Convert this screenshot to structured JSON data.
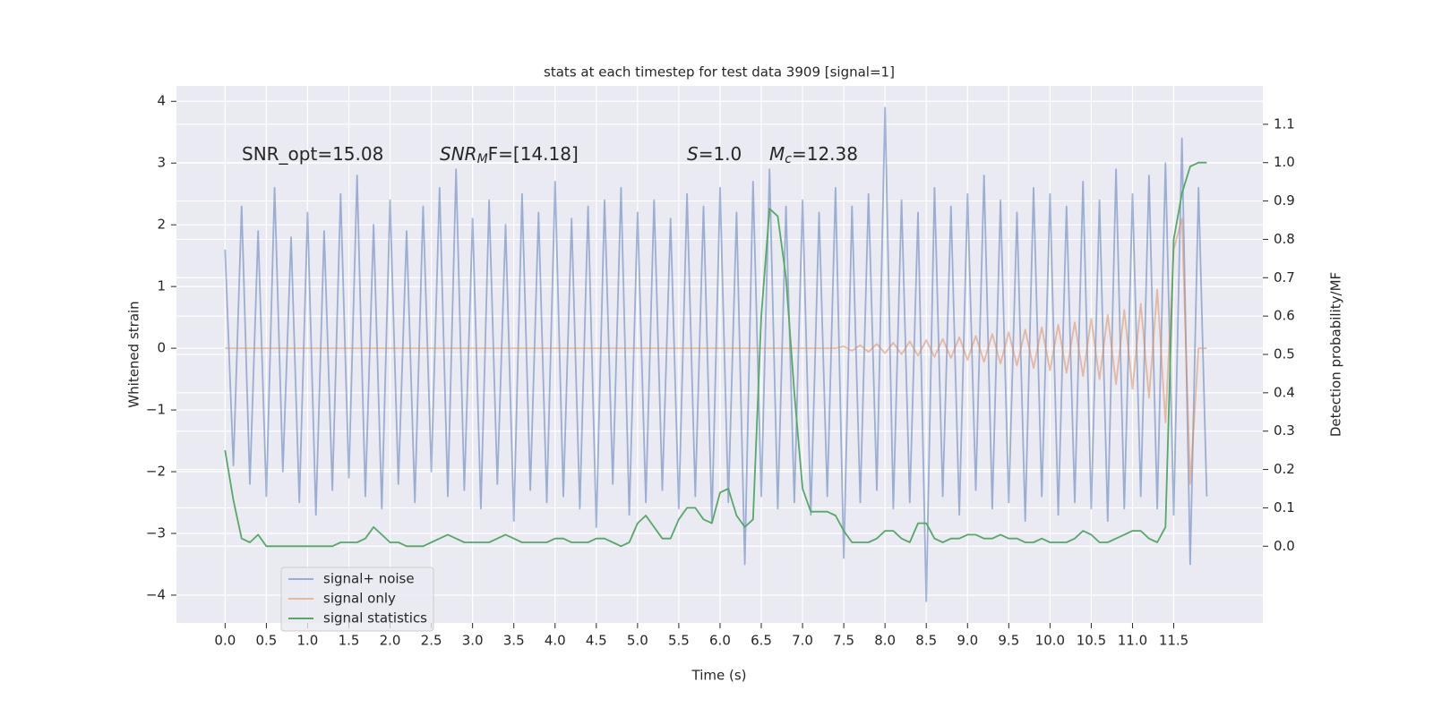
{
  "chart_data": {
    "type": "line",
    "title": "stats at each timestep for test data 3909 [signal=1]",
    "xlabel": "Time (s)",
    "ylabel": "Whitened strain",
    "y2label": "Detection probability/MF",
    "annotations": [
      {
        "plain": "SNR_opt=15.08"
      },
      {
        "main": "SNR",
        "sub": "M",
        "rest": "F=[14.18]"
      },
      {
        "main": "S",
        "rest": "=1.0"
      },
      {
        "main": "M",
        "sub": "c",
        "rest": "=12.38"
      }
    ],
    "x": [
      0.0,
      0.1,
      0.2,
      0.3,
      0.4,
      0.5,
      0.6,
      0.7,
      0.8,
      0.9,
      1.0,
      1.1,
      1.2,
      1.3,
      1.4,
      1.5,
      1.6,
      1.7,
      1.8,
      1.9,
      2.0,
      2.1,
      2.2,
      2.3,
      2.4,
      2.5,
      2.6,
      2.7,
      2.8,
      2.9,
      3.0,
      3.1,
      3.2,
      3.3,
      3.4,
      3.5,
      3.6,
      3.7,
      3.8,
      3.9,
      4.0,
      4.1,
      4.2,
      4.3,
      4.4,
      4.5,
      4.6,
      4.7,
      4.8,
      4.9,
      5.0,
      5.1,
      5.2,
      5.3,
      5.4,
      5.5,
      5.6,
      5.7,
      5.8,
      5.9,
      6.0,
      6.1,
      6.2,
      6.3,
      6.4,
      6.5,
      6.6,
      6.7,
      6.8,
      6.9,
      7.0,
      7.1,
      7.2,
      7.3,
      7.4,
      7.5,
      7.6,
      7.7,
      7.8,
      7.9,
      8.0,
      8.1,
      8.2,
      8.3,
      8.4,
      8.5,
      8.6,
      8.7,
      8.8,
      8.9,
      9.0,
      9.1,
      9.2,
      9.3,
      9.4,
      9.5,
      9.6,
      9.7,
      9.8,
      9.9,
      10.0,
      10.1,
      10.2,
      10.3,
      10.4,
      10.5,
      10.6,
      10.7,
      10.8,
      10.9,
      11.0,
      11.1,
      11.2,
      11.3,
      11.4,
      11.5,
      11.6,
      11.7,
      11.8,
      11.9
    ],
    "series": [
      {
        "name": "signal+ noise",
        "color": "#4c72b0",
        "alpha": 0.5,
        "values": [
          1.6,
          -1.9,
          2.3,
          -2.2,
          1.9,
          -2.4,
          2.6,
          -2.0,
          1.8,
          -2.5,
          2.2,
          -2.7,
          1.9,
          -2.3,
          2.5,
          -2.1,
          2.8,
          -2.4,
          2.0,
          -2.6,
          2.4,
          -2.2,
          1.9,
          -2.5,
          2.3,
          -2.0,
          2.6,
          -2.4,
          2.9,
          -2.3,
          2.1,
          -2.6,
          2.4,
          -2.2,
          2.0,
          -2.8,
          2.5,
          -2.3,
          2.2,
          -2.5,
          2.7,
          -2.4,
          2.1,
          -2.6,
          2.3,
          -2.9,
          2.4,
          -2.2,
          2.6,
          -2.7,
          2.2,
          -2.5,
          2.4,
          -2.3,
          2.1,
          -2.6,
          2.5,
          -2.4,
          2.3,
          -2.8,
          2.6,
          -2.5,
          2.2,
          -3.5,
          2.7,
          -2.4,
          2.9,
          -2.6,
          2.3,
          -2.5,
          2.4,
          -2.7,
          2.2,
          -2.4,
          2.6,
          -3.4,
          2.3,
          -2.5,
          2.5,
          -2.3,
          3.9,
          -2.6,
          2.4,
          -2.5,
          2.2,
          -4.1,
          2.6,
          -2.4,
          2.3,
          -2.7,
          2.5,
          -2.3,
          2.8,
          -2.6,
          2.4,
          -2.5,
          2.2,
          -2.8,
          2.6,
          -2.4,
          2.5,
          -2.7,
          2.3,
          -2.5,
          2.7,
          -2.6,
          2.4,
          -2.8,
          2.9,
          -2.6,
          2.5,
          -2.4,
          2.8,
          -2.6,
          3.0,
          -2.7,
          3.4,
          -3.5,
          2.6,
          -2.4
        ]
      },
      {
        "name": "signal only",
        "color": "#dd8452",
        "alpha": 0.5,
        "values": [
          0,
          0,
          0,
          0,
          0,
          0,
          0,
          0,
          0,
          0,
          0,
          0,
          0,
          0,
          0,
          0,
          0,
          0,
          0,
          0,
          0,
          0,
          0,
          0,
          0,
          0,
          0,
          0,
          0,
          0,
          0,
          0,
          0,
          0,
          0,
          0,
          0,
          0,
          0,
          0,
          0,
          0,
          0,
          0,
          0,
          0,
          0,
          0,
          0,
          0,
          0,
          0,
          0,
          0,
          0,
          0,
          0,
          0,
          0,
          0,
          0,
          0,
          0,
          0,
          0,
          0,
          0,
          0,
          0,
          0,
          0,
          0,
          0,
          0,
          0,
          0.03,
          -0.04,
          0.05,
          -0.06,
          0.07,
          -0.08,
          0.09,
          -0.1,
          0.11,
          -0.12,
          0.13,
          -0.14,
          0.15,
          -0.16,
          0.18,
          -0.19,
          0.2,
          -0.22,
          0.23,
          -0.25,
          0.26,
          -0.28,
          0.3,
          -0.32,
          0.34,
          -0.36,
          0.38,
          -0.4,
          0.42,
          -0.45,
          0.48,
          -0.5,
          0.54,
          -0.58,
          0.62,
          -0.66,
          0.72,
          -0.8,
          0.95,
          -1.2,
          1.6,
          2.1,
          -2.2,
          0,
          0
        ]
      },
      {
        "name": "signal statistics",
        "color": "#55a868",
        "alpha": 1,
        "axis": "y2",
        "values": [
          0.25,
          0.12,
          0.02,
          0.01,
          0.03,
          0.0,
          0.0,
          0.0,
          0.0,
          0.0,
          0.0,
          0.0,
          0.0,
          0.0,
          0.01,
          0.01,
          0.01,
          0.02,
          0.05,
          0.03,
          0.01,
          0.01,
          0.0,
          0.0,
          0.0,
          0.01,
          0.02,
          0.03,
          0.02,
          0.01,
          0.01,
          0.01,
          0.01,
          0.02,
          0.03,
          0.02,
          0.01,
          0.01,
          0.01,
          0.01,
          0.02,
          0.02,
          0.01,
          0.01,
          0.01,
          0.02,
          0.02,
          0.01,
          0.0,
          0.01,
          0.06,
          0.08,
          0.05,
          0.02,
          0.02,
          0.07,
          0.1,
          0.1,
          0.07,
          0.06,
          0.14,
          0.15,
          0.08,
          0.05,
          0.07,
          0.6,
          0.88,
          0.86,
          0.7,
          0.4,
          0.15,
          0.09,
          0.09,
          0.09,
          0.08,
          0.04,
          0.01,
          0.01,
          0.01,
          0.02,
          0.04,
          0.04,
          0.02,
          0.01,
          0.06,
          0.06,
          0.02,
          0.01,
          0.02,
          0.02,
          0.03,
          0.03,
          0.02,
          0.02,
          0.03,
          0.02,
          0.02,
          0.01,
          0.01,
          0.02,
          0.01,
          0.01,
          0.01,
          0.02,
          0.04,
          0.03,
          0.01,
          0.01,
          0.02,
          0.03,
          0.04,
          0.04,
          0.02,
          0.01,
          0.05,
          0.8,
          0.92,
          0.99,
          1.0,
          1.0
        ]
      }
    ],
    "xlim": [
      -0.59,
      12.58
    ],
    "xticks": [
      {
        "value": 0,
        "label": "0.0"
      },
      {
        "value": 0.5,
        "label": "0.5"
      },
      {
        "value": 1,
        "label": "1.0"
      },
      {
        "value": 1.5,
        "label": "1.5"
      },
      {
        "value": 2,
        "label": "2.0"
      },
      {
        "value": 2.5,
        "label": "2.5"
      },
      {
        "value": 3,
        "label": "3.0"
      },
      {
        "value": 3.5,
        "label": "3.5"
      },
      {
        "value": 4,
        "label": "4.0"
      },
      {
        "value": 4.5,
        "label": "4.5"
      },
      {
        "value": 5,
        "label": "5.0"
      },
      {
        "value": 5.5,
        "label": "5.5"
      },
      {
        "value": 6,
        "label": "6.0"
      },
      {
        "value": 6.5,
        "label": "6.5"
      },
      {
        "value": 7,
        "label": "7.0"
      },
      {
        "value": 7.5,
        "label": "7.5"
      },
      {
        "value": 8,
        "label": "8.0"
      },
      {
        "value": 8.5,
        "label": "8.5"
      },
      {
        "value": 9,
        "label": "9.0"
      },
      {
        "value": 9.5,
        "label": "9.5"
      },
      {
        "value": 10,
        "label": "10.0"
      },
      {
        "value": 10.5,
        "label": "10.5"
      },
      {
        "value": 11,
        "label": "11.0"
      },
      {
        "value": 11.5,
        "label": "11.5"
      }
    ],
    "ylim": [
      -4.45,
      4.25
    ],
    "yticks": [
      {
        "value": -4,
        "label": "−4"
      },
      {
        "value": -3,
        "label": "−3"
      },
      {
        "value": -2,
        "label": "−2"
      },
      {
        "value": -1,
        "label": "−1"
      },
      0,
      1,
      2,
      3,
      4
    ],
    "y2lim": [
      -0.2,
      1.2
    ],
    "y2ticks": [
      {
        "value": 0,
        "label": "0.0"
      },
      {
        "value": 0.1,
        "label": "0.1"
      },
      {
        "value": 0.2,
        "label": "0.2"
      },
      {
        "value": 0.3,
        "label": "0.3"
      },
      {
        "value": 0.4,
        "label": "0.4"
      },
      {
        "value": 0.5,
        "label": "0.5"
      },
      {
        "value": 0.6,
        "label": "0.6"
      },
      {
        "value": 0.7,
        "label": "0.7"
      },
      {
        "value": 0.8,
        "label": "0.8"
      },
      {
        "value": 0.9,
        "label": "0.9"
      },
      {
        "value": 1,
        "label": "1.0"
      },
      {
        "value": 1.1,
        "label": "1.1"
      }
    ],
    "grid": true,
    "legend": "lower left",
    "background": "#eaeaf2"
  }
}
